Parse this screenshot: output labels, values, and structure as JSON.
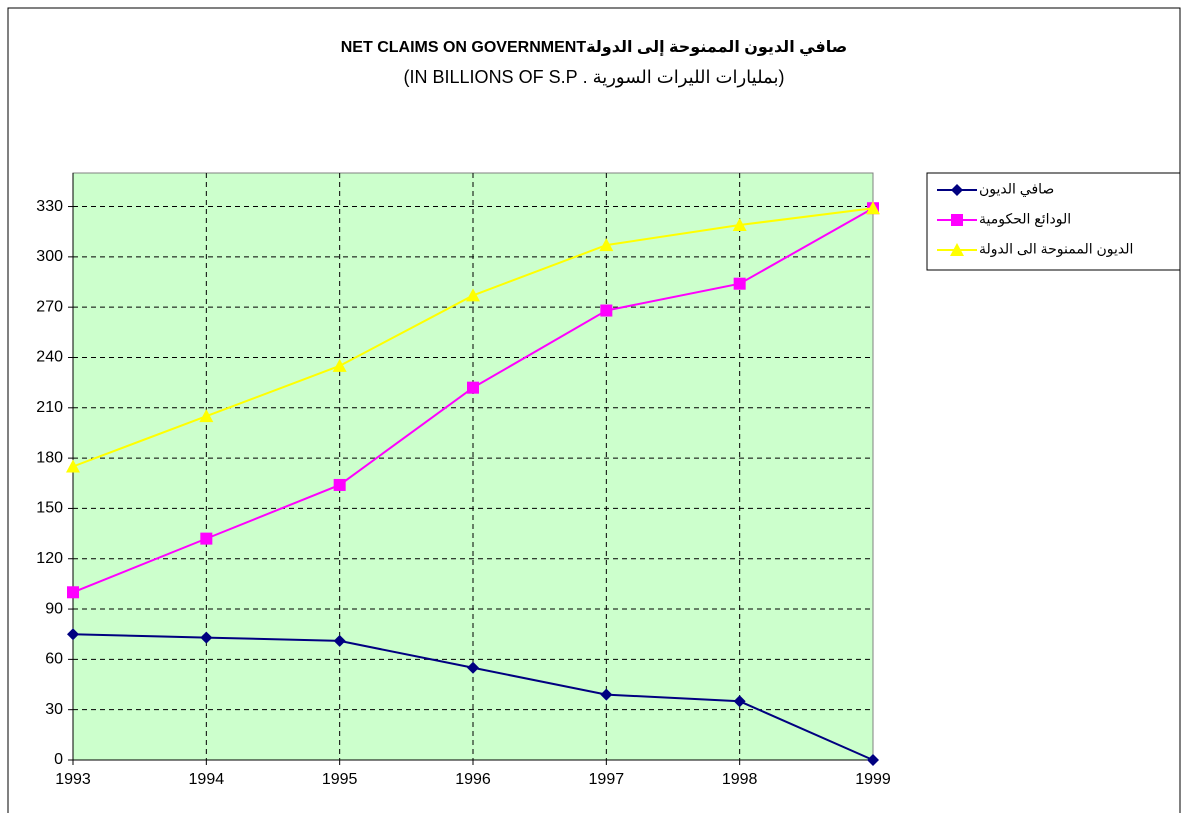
{
  "chart_data": {
    "type": "line",
    "title": "صافي الديون الممنوحة إلى الدولةNET CLAIMS ON GOVERNMENT",
    "subtitle": "(بمليارات الليرات السورية  . IN BILLIONS OF S.P)",
    "categories": [
      "1993",
      "1994",
      "1995",
      "1996",
      "1997",
      "1998",
      "1999"
    ],
    "series": [
      {
        "name": "صافي الديون",
        "color": "#000080",
        "marker": "diamond",
        "values": [
          75,
          73,
          71,
          55,
          39,
          35,
          0
        ]
      },
      {
        "name": "الودائع الحكومية",
        "color": "#ff00ff",
        "marker": "square",
        "values": [
          100,
          132,
          164,
          222,
          268,
          284,
          329
        ]
      },
      {
        "name": "الديون الممنوحة الى الدولة",
        "color": "#ffff00",
        "marker": "triangle",
        "values": [
          175,
          205,
          235,
          277,
          307,
          319,
          329
        ]
      }
    ],
    "ylim": [
      0,
      350
    ],
    "yticks": [
      0,
      30,
      60,
      90,
      120,
      150,
      180,
      210,
      240,
      270,
      300,
      330
    ],
    "grid": true,
    "plot_background": "#ccffcc",
    "legend": "right"
  }
}
